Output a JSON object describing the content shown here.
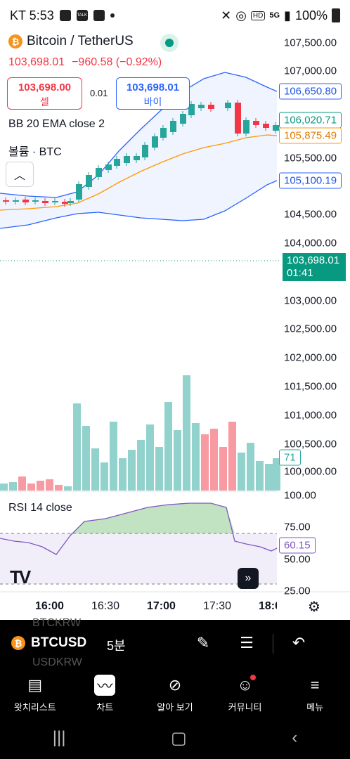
{
  "status_bar": {
    "carrier_time": "KT 5:53",
    "talk_badge": "TALK",
    "network": "5G",
    "battery": "100%"
  },
  "header": {
    "symbol_title": "Bitcoin / TetherUS",
    "last_price": "103,698.01",
    "change": "−960.58 (−0.92%)",
    "sell_price": "103,698.00",
    "sell_label": "셀",
    "spread": "0.01",
    "buy_price": "103,698.01",
    "buy_label": "바이"
  },
  "indicators": {
    "bb_label": "BB 20 EMA close 2",
    "volume_label": "볼륨 · BTC",
    "rsi_label": "RSI 14 close"
  },
  "price_axis": {
    "ticks": [
      "107,500.00",
      "107,000.00",
      "105,500.00",
      "104,500.00",
      "104,000.00",
      "103,000.00",
      "102,500.00",
      "102,000.00",
      "101,500.00",
      "101,000.00",
      "100,500.00",
      "100,000.00"
    ],
    "bb_upper": "106,650.80",
    "last_close_green": "106,020.71",
    "bb_basis": "105,875.49",
    "bb_lower": "105,100.19",
    "current_price": "103,698.01",
    "countdown": "01:41",
    "volume_value": "71"
  },
  "rsi_axis": {
    "ticks": [
      "100.00",
      "75.00",
      "50.00",
      "25.00"
    ],
    "value": "60.15"
  },
  "time_axis": [
    "16:00",
    "16:30",
    "17:00",
    "17:30",
    "18:0"
  ],
  "toolbar": {
    "ghost_top": "BTCKRW",
    "ghost_bottom": "USDKRW",
    "symbol": "BTCUSD",
    "interval": "5분"
  },
  "bottom_nav": [
    {
      "label": "왓치리스트",
      "icon": "watchlist-icon"
    },
    {
      "label": "차트",
      "icon": "chart-icon"
    },
    {
      "label": "알아 보기",
      "icon": "explore-icon"
    },
    {
      "label": "커뮤니티",
      "icon": "community-icon"
    },
    {
      "label": "메뉴",
      "icon": "menu-icon"
    }
  ],
  "colors": {
    "up": "#26a69a",
    "down": "#f23645",
    "bb": "#2962ff",
    "ema": "#ff9800",
    "rsi": "#7e57c2"
  }
}
